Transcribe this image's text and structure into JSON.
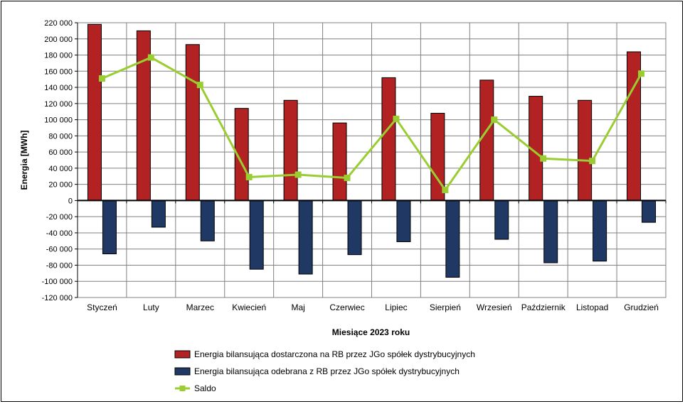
{
  "chart_data": {
    "type": "bar",
    "xlabel": "Miesiące 2023  roku",
    "ylabel": "Energia  [MWh]",
    "ylim": [
      -120000,
      220000
    ],
    "ytick_step": 20000,
    "grid": true,
    "legend_position": "bottom",
    "categories": [
      "Styczeń",
      "Luty",
      "Marzec",
      "Kwiecień",
      "Maj",
      "Czerwiec",
      "Lipiec",
      "Sierpień",
      "Wrzesień",
      "Październik",
      "Listopad",
      "Grudzień"
    ],
    "series": [
      {
        "name": "Energia bilansująca dostarczona na RB przez JGo spółek dystrybucyjnych",
        "kind": "bar",
        "color": "#b22222",
        "values": [
          218000,
          210000,
          193000,
          114000,
          124000,
          96000,
          152000,
          108000,
          149000,
          129000,
          124000,
          184000
        ]
      },
      {
        "name": "Energia bilansująca odebrana z RB przez JGo spółek dystrybucyjnych",
        "kind": "bar",
        "color": "#1f3864",
        "values": [
          -66000,
          -33000,
          -50000,
          -85000,
          -91000,
          -67000,
          -51000,
          -95000,
          -48000,
          -77000,
          -75000,
          -27000
        ]
      },
      {
        "name": "Saldo",
        "kind": "line",
        "color": "#9acd32",
        "values": [
          151000,
          177000,
          143000,
          29000,
          32000,
          28000,
          101000,
          13000,
          100000,
          52000,
          49000,
          157000
        ]
      }
    ]
  }
}
